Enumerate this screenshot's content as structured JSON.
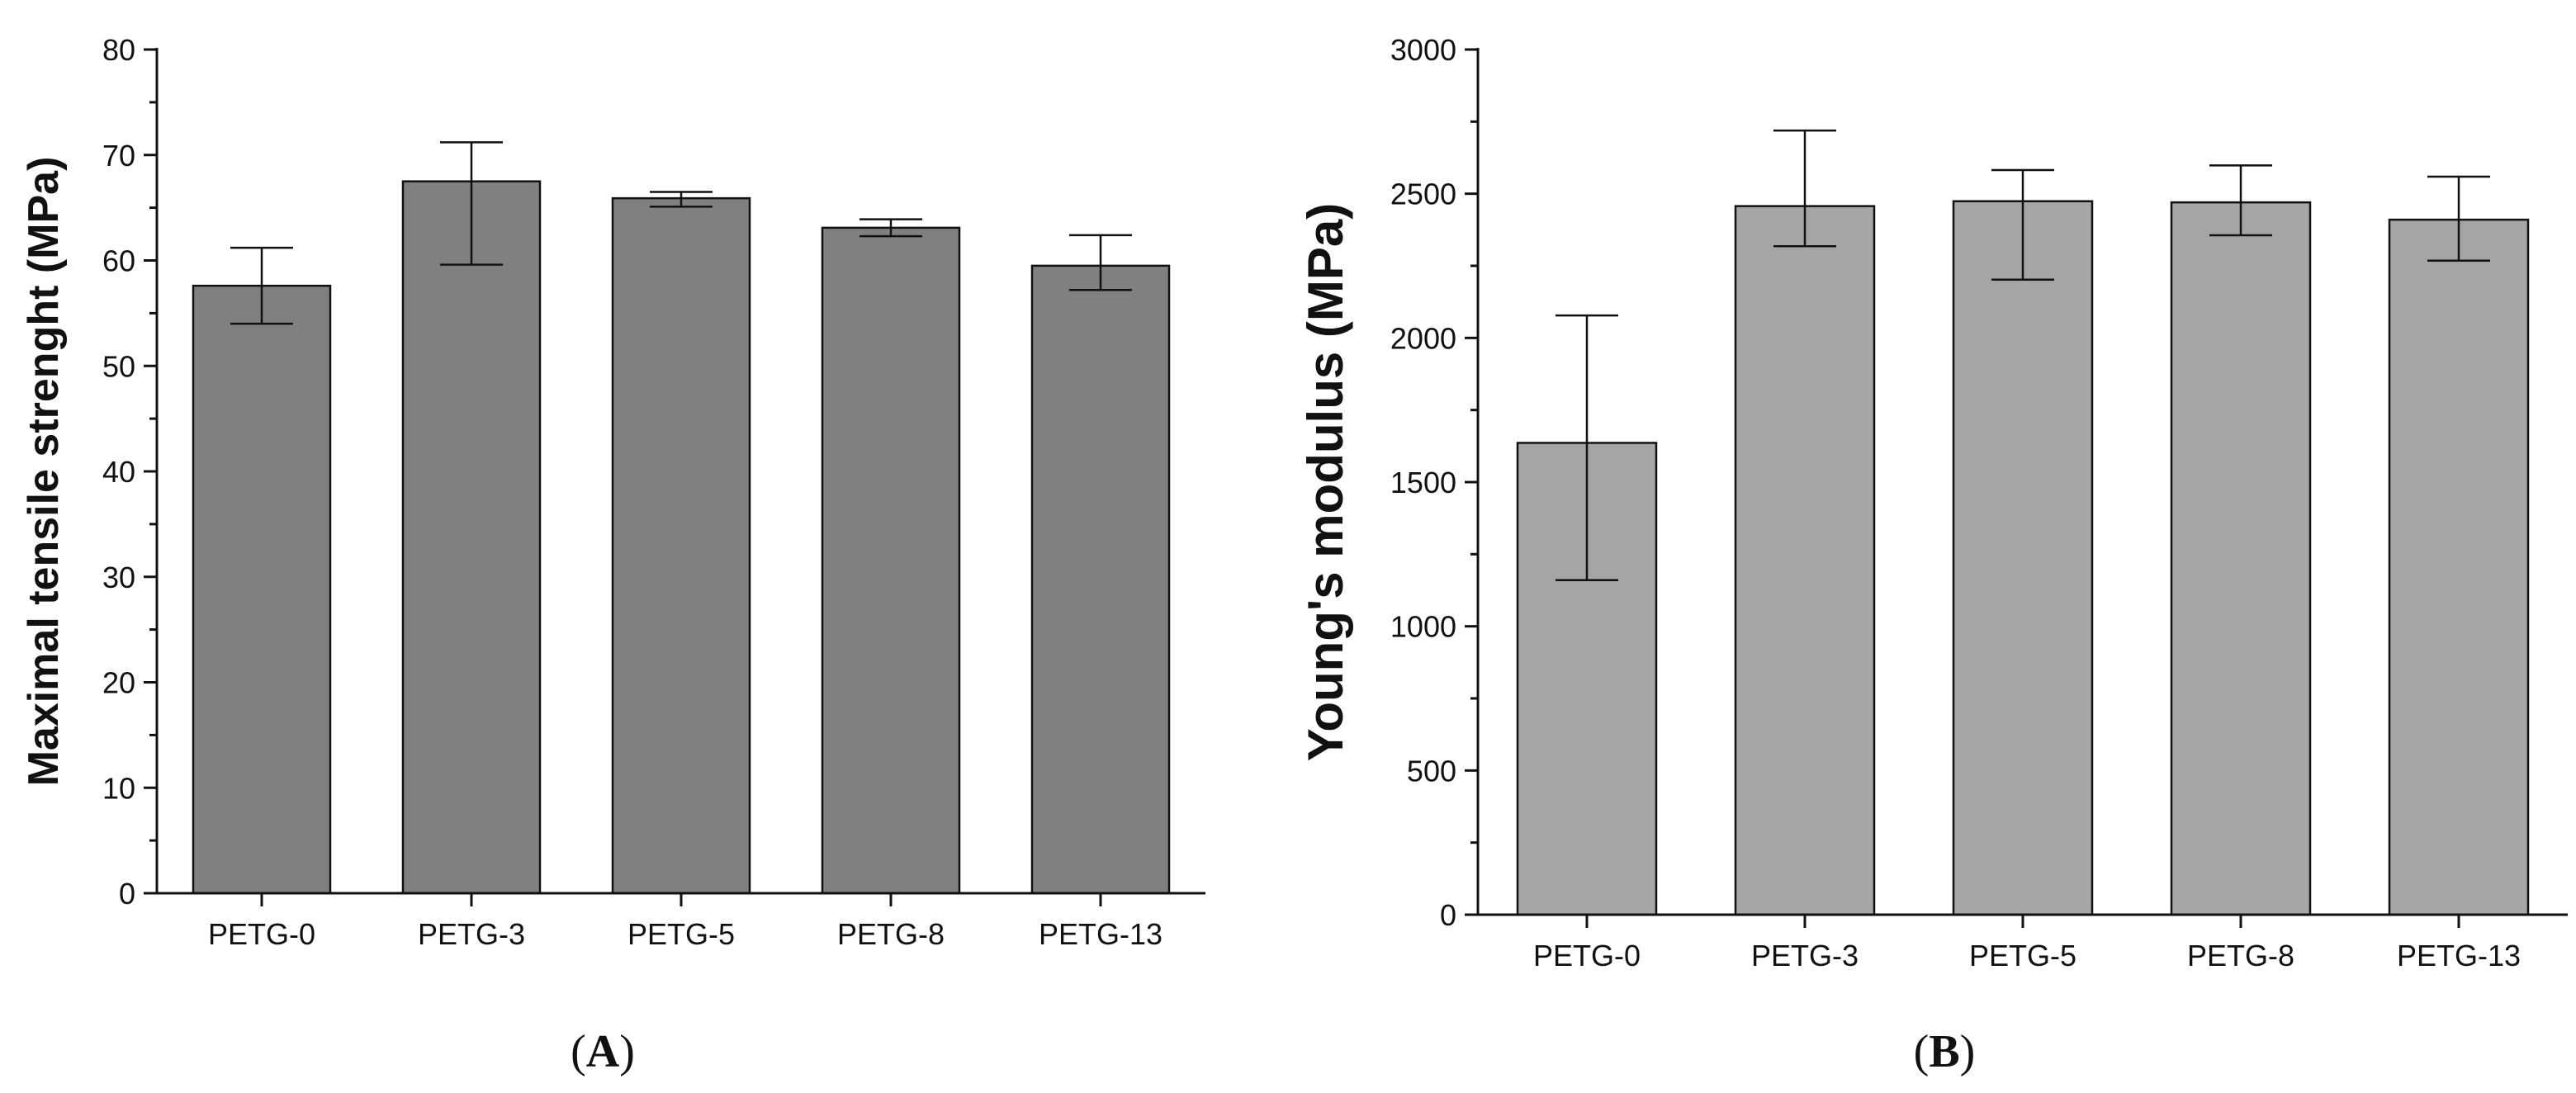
{
  "chart_data": [
    {
      "type": "bar",
      "panel_label": "(A)",
      "title": "",
      "xlabel": "",
      "ylabel": "Maximal tensile strenght (MPa)",
      "categories": [
        "PETG-0",
        "PETG-3",
        "PETG-5",
        "PETG-8",
        "PETG-13"
      ],
      "values": [
        57.6,
        67.5,
        65.9,
        63.1,
        59.5
      ],
      "errors_upper": [
        61.2,
        71.2,
        66.5,
        63.9,
        62.4
      ],
      "errors_lower": [
        54.0,
        59.6,
        65.1,
        62.3,
        57.2
      ],
      "ylim": [
        0,
        80
      ],
      "yticks": [
        0,
        10,
        20,
        30,
        40,
        50,
        60,
        70,
        80
      ],
      "ytick_labels": [
        "0",
        "10",
        "20",
        "30",
        "40",
        "50",
        "60",
        "70",
        "80"
      ],
      "bar_color": "#808080",
      "grid": false
    },
    {
      "type": "bar",
      "panel_label": "(B)",
      "title": "",
      "xlabel": "",
      "ylabel": "Young's  modulus (MPa)",
      "categories": [
        "PETG-0",
        "PETG-3",
        "PETG-5",
        "PETG-8",
        "PETG-13"
      ],
      "values": [
        1636,
        2457,
        2474,
        2470,
        2410
      ],
      "errors_upper": [
        2078,
        2719,
        2582,
        2598,
        2559
      ],
      "errors_lower": [
        1160,
        2318,
        2202,
        2356,
        2268
      ],
      "ylim": [
        0,
        3000
      ],
      "yticks": [
        0,
        500,
        1000,
        1500,
        2000,
        2500,
        3000
      ],
      "ytick_labels": [
        "0",
        "500",
        "1000",
        "1500",
        "2000",
        "2500",
        "3000"
      ],
      "bar_color": "#a5a5a5",
      "grid": false
    }
  ]
}
